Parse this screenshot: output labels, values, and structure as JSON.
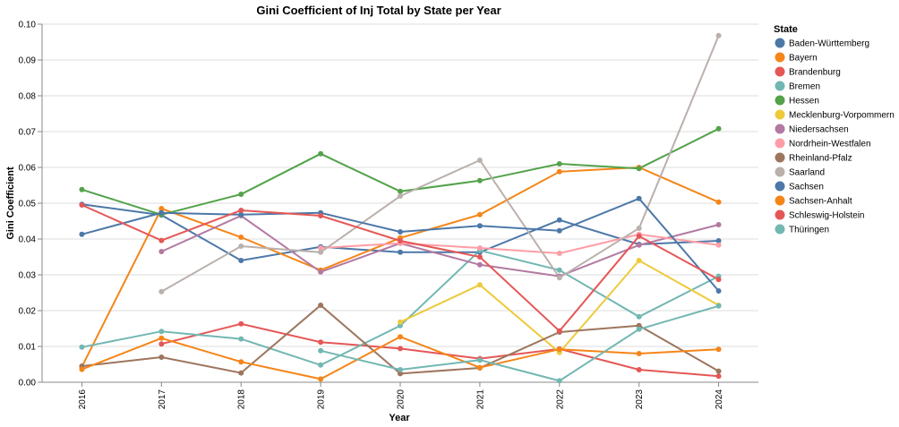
{
  "chart_data": {
    "type": "line",
    "title": "Gini Coefficient of Inj Total by State per Year",
    "xlabel": "Year",
    "ylabel": "Gini Coefficient",
    "x": [
      "2016",
      "2017",
      "2018",
      "2019",
      "2020",
      "2021",
      "2022",
      "2023",
      "2024"
    ],
    "ylim": [
      0,
      0.1
    ],
    "yticks": [
      "0.00",
      "0.01",
      "0.02",
      "0.03",
      "0.04",
      "0.05",
      "0.06",
      "0.07",
      "0.08",
      "0.09",
      "0.10"
    ],
    "grid": true,
    "legend": {
      "title": "State",
      "position": "right"
    },
    "series": [
      {
        "name": "Baden-Württemberg",
        "color": "#4c78a8",
        "values": [
          0.0497,
          0.0467,
          0.034,
          0.0378,
          0.0363,
          0.0363,
          0.0453,
          0.0385,
          0.0395
        ]
      },
      {
        "name": "Bayern",
        "color": "#f58518",
        "values": [
          0.0043,
          0.0485,
          0.0405,
          0.0313,
          0.0403,
          0.0468,
          0.0588,
          0.06,
          0.0503
        ]
      },
      {
        "name": "Brandenburg",
        "color": "#e45756",
        "values": [
          null,
          0.0107,
          0.0163,
          0.0112,
          0.0094,
          0.0066,
          0.0093,
          0.0035,
          0.0017
        ]
      },
      {
        "name": "Bremen",
        "color": "#72b7b2",
        "values": [
          0.0098,
          0.0142,
          0.0121,
          0.0048,
          0.0158,
          0.0368,
          0.0313,
          0.0183,
          0.0296
        ]
      },
      {
        "name": "Hessen",
        "color": "#54a24b",
        "values": [
          0.0538,
          0.0468,
          0.0525,
          0.0638,
          0.0533,
          0.0563,
          0.061,
          0.0597,
          0.0708
        ]
      },
      {
        "name": "Mecklenburg-Vorpommern",
        "color": "#eeca3b",
        "values": [
          null,
          null,
          null,
          null,
          0.0168,
          0.0272,
          0.0083,
          0.034,
          0.0215
        ]
      },
      {
        "name": "Niedersachsen",
        "color": "#b279a2",
        "values": [
          null,
          0.0365,
          0.0465,
          0.0308,
          0.0388,
          0.0328,
          0.0296,
          0.0383,
          0.044
        ]
      },
      {
        "name": "Nordrhein-Westfalen",
        "color": "#ff9da6",
        "values": [
          null,
          null,
          null,
          0.0375,
          0.0388,
          0.0375,
          0.036,
          0.0413,
          0.0383
        ]
      },
      {
        "name": "Rheinland-Pfalz",
        "color": "#9d755d",
        "values": [
          0.0045,
          0.007,
          0.0026,
          0.0215,
          0.0024,
          0.004,
          0.014,
          0.0158,
          0.0031
        ]
      },
      {
        "name": "Saarland",
        "color": "#bab0ac",
        "values": [
          null,
          0.0253,
          0.038,
          0.0363,
          0.052,
          0.062,
          0.0292,
          0.043,
          0.0968
        ]
      },
      {
        "name": "Sachsen",
        "color": "#4c78a8",
        "values": [
          0.0413,
          0.0473,
          0.0468,
          0.0473,
          0.042,
          0.0437,
          0.0423,
          0.0513,
          0.0255
        ]
      },
      {
        "name": "Sachsen-Anhalt",
        "color": "#f58518",
        "values": [
          0.0036,
          0.0123,
          0.0057,
          0.0009,
          0.0127,
          0.0041,
          0.0092,
          0.008,
          0.0092
        ]
      },
      {
        "name": "Schleswig-Holstein",
        "color": "#e45756",
        "values": [
          0.0495,
          0.0396,
          0.048,
          0.0465,
          0.0395,
          0.035,
          0.0143,
          0.0408,
          0.0287
        ]
      },
      {
        "name": "Thüringen",
        "color": "#72b7b2",
        "values": [
          null,
          null,
          null,
          0.0088,
          0.0035,
          0.0062,
          0.0004,
          0.0148,
          0.0213
        ]
      }
    ]
  }
}
